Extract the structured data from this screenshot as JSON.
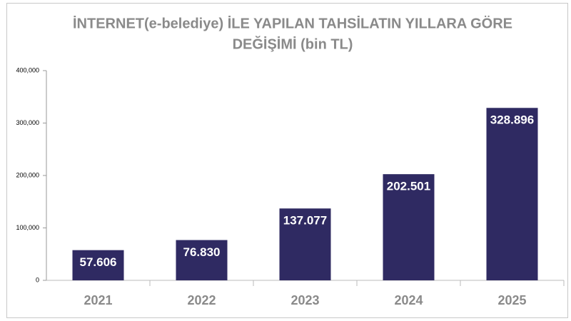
{
  "chart_data": {
    "type": "bar",
    "title": [
      "İNTERNET(e-belediye) İLE YAPILAN TAHSİLATIN YILLARA GÖRE",
      "DEĞİŞİMİ (bin TL)"
    ],
    "categories": [
      "2021",
      "2022",
      "2023",
      "2024",
      "2025"
    ],
    "values": [
      57606,
      76830,
      137077,
      202501,
      328896
    ],
    "value_labels": [
      "57.606",
      "76.830",
      "137.077",
      "202.501",
      "328.896"
    ],
    "color": "#2f2a62",
    "ylim": [
      0,
      400000
    ],
    "yticks": [
      0,
      {
        "value": 100000,
        "label": "100,000"
      },
      {
        "value": 200000,
        "label": "200,000"
      },
      {
        "value": 300000,
        "label": "300,000"
      },
      {
        "value": 400000,
        "label": "400,000"
      }
    ],
    "grid": false
  }
}
